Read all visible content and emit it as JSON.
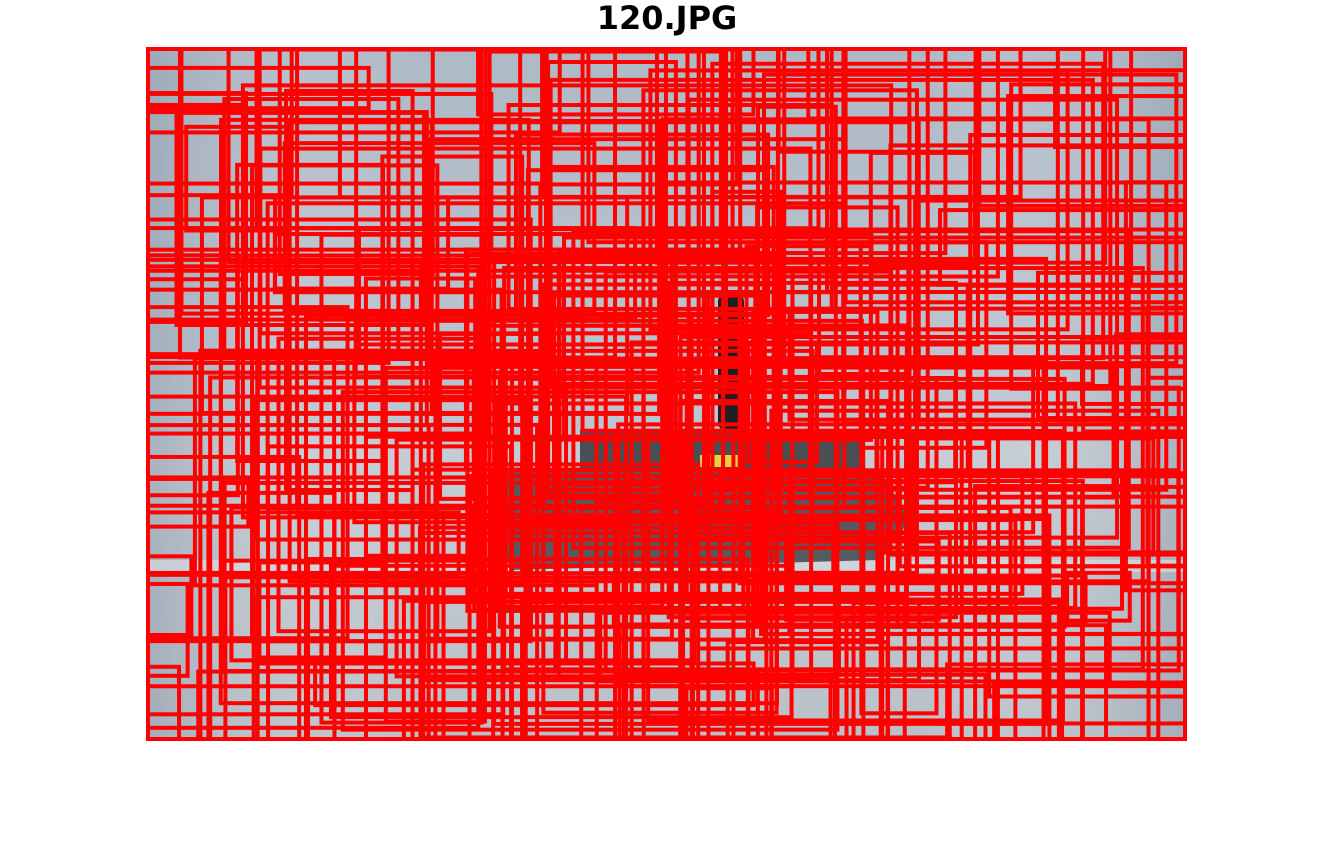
{
  "title": "120.JPG"
}
